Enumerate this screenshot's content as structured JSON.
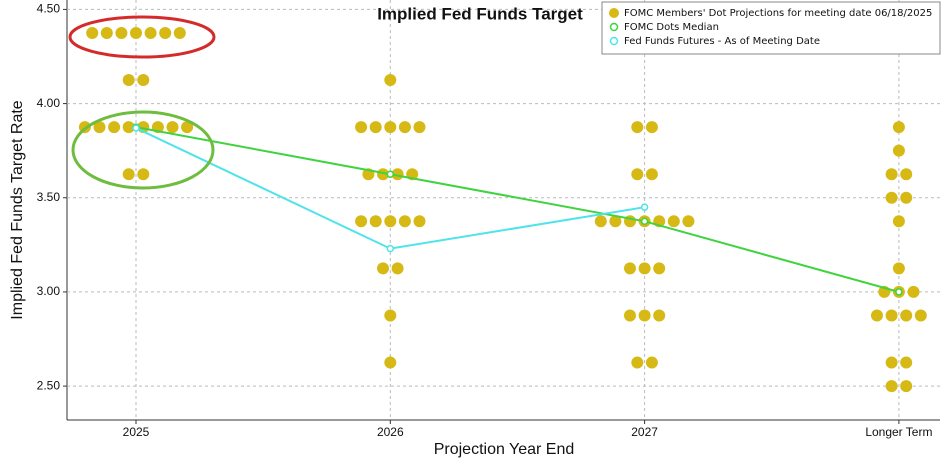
{
  "chart_data": {
    "type": "dot-plot",
    "title": "Implied Fed Funds Target",
    "x_label": "Projection Year End",
    "y_label": "Implied Fed Funds Target Rate",
    "categories": [
      "2025",
      "2026",
      "2027",
      "Longer Term"
    ],
    "ylim": [
      2.32,
      4.55
    ],
    "yticks": [
      {
        "value": 2.5,
        "label": "2.50"
      },
      {
        "value": 3,
        "label": "3.00"
      },
      {
        "value": 3.5,
        "label": "3.50"
      },
      {
        "value": 4,
        "label": "4.00"
      },
      {
        "value": 4.5,
        "label": "4.50"
      }
    ],
    "grid": true,
    "legend": "top-right",
    "series": [
      {
        "name": "FOMC Members' Dot Projections for meeting date 06/18/2025",
        "color": "#d6b914",
        "kind": "dots",
        "values": [
          [
            4.375,
            4.375,
            4.375,
            4.375,
            4.375,
            4.375,
            4.375,
            4.125,
            4.125,
            3.875,
            3.875,
            3.875,
            3.875,
            3.875,
            3.875,
            3.875,
            3.875,
            3.625,
            3.625
          ],
          [
            4.125,
            3.875,
            3.875,
            3.875,
            3.875,
            3.875,
            3.625,
            3.625,
            3.625,
            3.625,
            3.375,
            3.375,
            3.375,
            3.375,
            3.375,
            3.125,
            3.125,
            2.875,
            2.625
          ],
          [
            3.875,
            3.875,
            3.625,
            3.625,
            3.375,
            3.375,
            3.375,
            3.375,
            3.375,
            3.375,
            3.375,
            3.125,
            3.125,
            3.125,
            2.875,
            2.875,
            2.875,
            2.625,
            2.625
          ],
          [
            3.875,
            3.75,
            3.625,
            3.625,
            3.5,
            3.5,
            3.375,
            3.125,
            3,
            3,
            3,
            2.875,
            2.875,
            2.875,
            2.875,
            2.625,
            2.625,
            2.5,
            2.5
          ]
        ]
      },
      {
        "name": "FOMC Dots Median",
        "color": "#3fd43f",
        "kind": "line",
        "values": [
          3.875,
          3.625,
          3.375,
          3
        ]
      },
      {
        "name": "Fed Funds Futures - As of Meeting Date",
        "color": "#4fe3ea",
        "kind": "line",
        "values": [
          3.87,
          3.23,
          3.45,
          null
        ]
      }
    ]
  }
}
